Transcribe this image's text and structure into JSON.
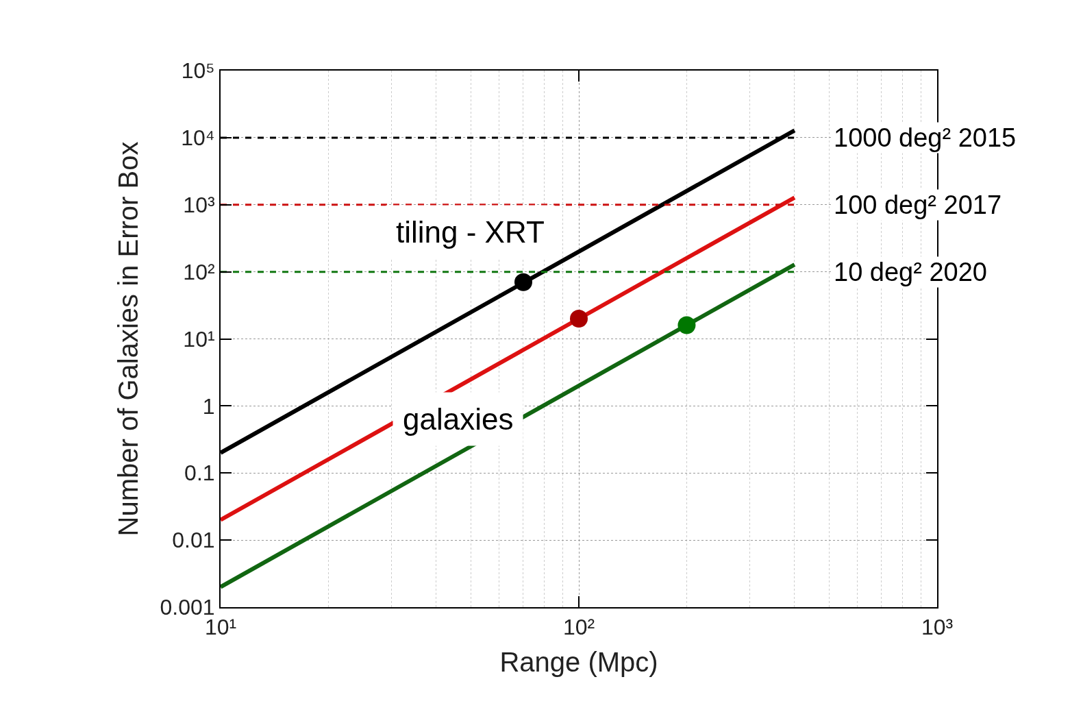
{
  "chart_data": {
    "type": "line",
    "xlabel": "Range (Mpc)",
    "ylabel": "Number of Galaxies in Error Box",
    "log": "xy",
    "grid": true,
    "xlim": [
      10,
      1000
    ],
    "ylim": [
      0.001,
      100000
    ],
    "xticks": [
      {
        "value": 10,
        "label": "10¹"
      },
      {
        "value": 100,
        "label": "10²"
      },
      {
        "value": 1000,
        "label": "10³"
      }
    ],
    "yticks": [
      0.001,
      0.01,
      0.1,
      1,
      {
        "value": 10,
        "label": "10¹"
      },
      {
        "value": 100,
        "label": "10²"
      },
      {
        "value": 1000,
        "label": "10³"
      },
      {
        "value": 10000,
        "label": "10⁴"
      },
      {
        "value": 100000,
        "label": "10⁵"
      }
    ],
    "series": [
      {
        "color": "#000000",
        "x": [
          10,
          400
        ],
        "values": [
          0.2,
          12800
        ]
      },
      {
        "color": "#dd1111",
        "x": [
          10,
          400
        ],
        "values": [
          0.02,
          1280
        ]
      },
      {
        "color": "#116611",
        "x": [
          10,
          400
        ],
        "values": [
          0.002,
          128
        ]
      },
      {
        "name": "1000 deg² 2015",
        "color": "#000000",
        "line_style": "dashed",
        "x": [
          10,
          400
        ],
        "values": [
          10000,
          10000
        ]
      },
      {
        "name": "100 deg² 2017",
        "color": "#cc1111",
        "line_style": "dashed",
        "x": [
          10,
          400
        ],
        "values": [
          1000,
          1000
        ]
      },
      {
        "name": "10 deg² 2020",
        "color": "#117711",
        "line_style": "dashed",
        "x": [
          10,
          400
        ],
        "values": [
          100,
          100
        ]
      },
      {
        "type": "scatter",
        "marker": "circle",
        "color": "#000000",
        "x": [
          70
        ],
        "values": [
          70
        ]
      },
      {
        "type": "scatter",
        "marker": "circle",
        "color": "#aa0000",
        "x": [
          100
        ],
        "values": [
          20
        ]
      },
      {
        "type": "scatter",
        "marker": "circle",
        "color": "#007700",
        "x": [
          200
        ],
        "values": [
          16
        ]
      }
    ],
    "annotations": [
      "tiling - XRT",
      "galaxies"
    ]
  }
}
